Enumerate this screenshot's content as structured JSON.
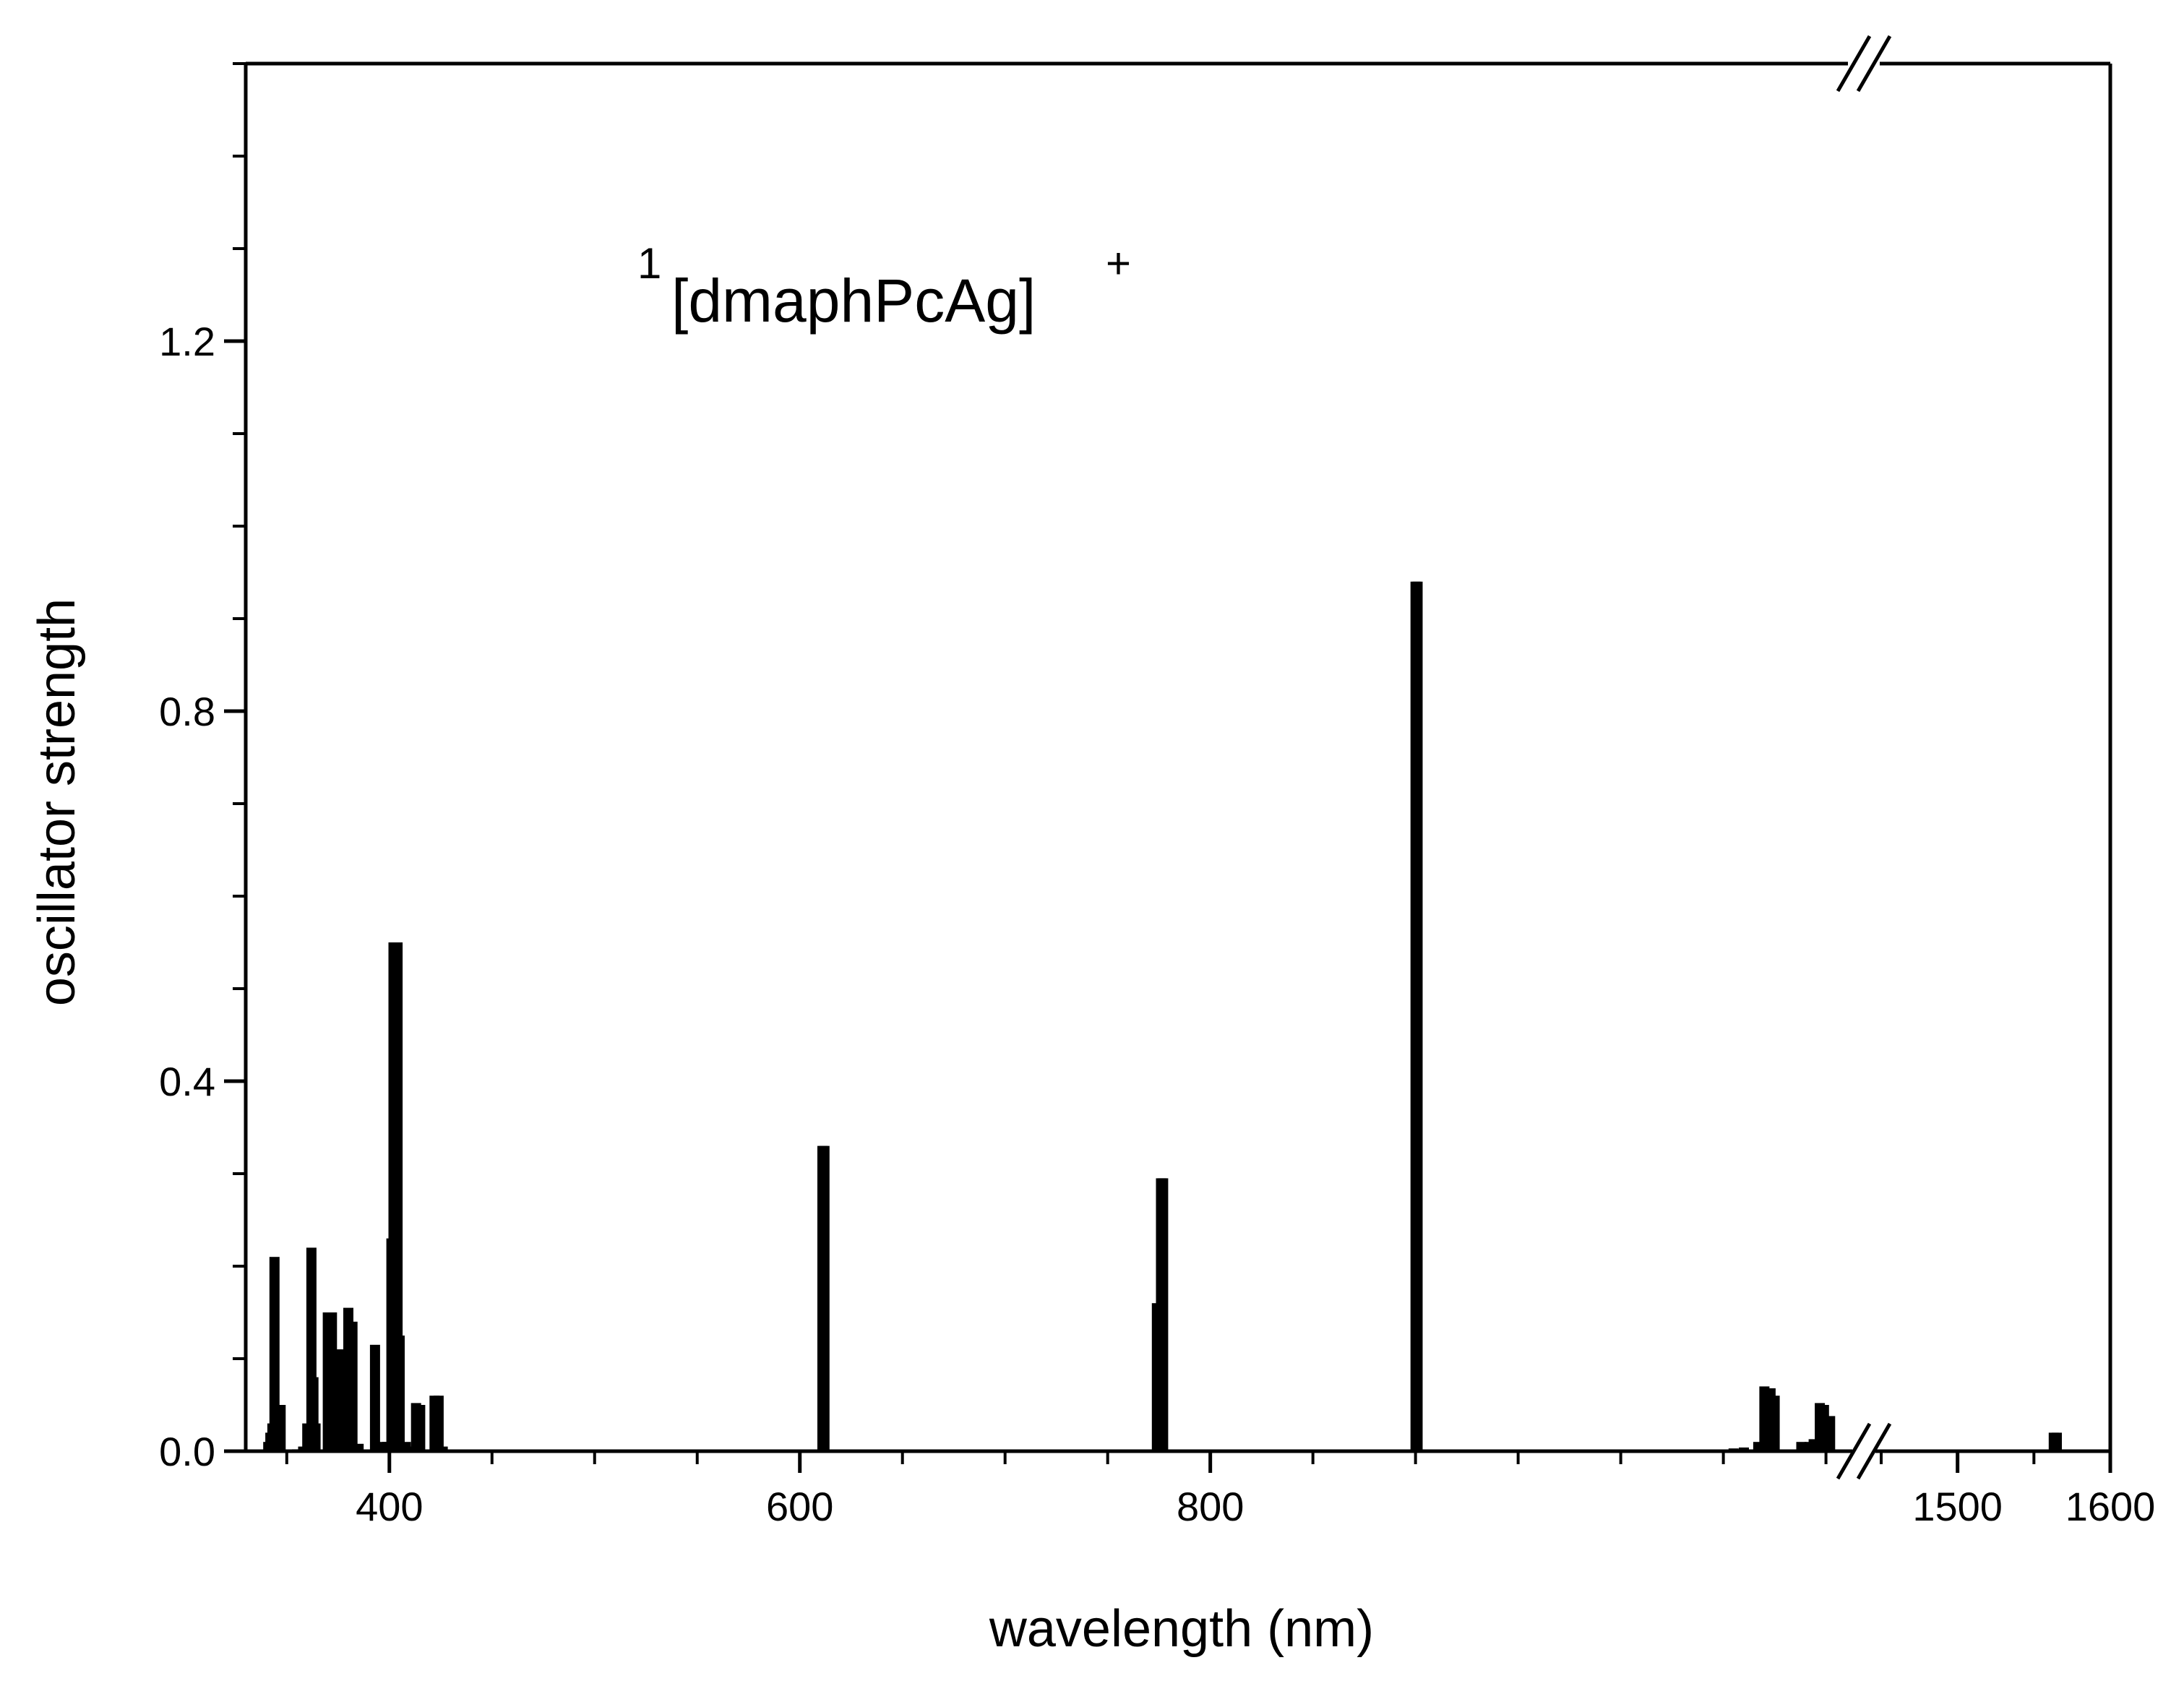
{
  "chart_data": {
    "type": "bar",
    "title": "",
    "xlabel": "wavelength (nm)",
    "ylabel": "oscillator strength",
    "annotation": {
      "superscript_left": "1",
      "text": "[dmaphPcAg]",
      "superscript_right": "+"
    },
    "x_axis": {
      "segments": [
        {
          "range": [
            330,
            1110
          ],
          "ticks": [
            400,
            600,
            800
          ],
          "tick_labels": [
            "400",
            "600",
            "800"
          ],
          "minor_step": 50
        },
        {
          "range": [
            1450,
            1600
          ],
          "ticks": [
            1500,
            1600
          ],
          "tick_labels": [
            "1500",
            "1600"
          ],
          "minor_step": 50
        }
      ],
      "break": true
    },
    "y_axis": {
      "ylim": [
        0,
        1.5
      ],
      "ticks": [
        0.0,
        0.4,
        0.8,
        1.2
      ],
      "tick_labels": [
        "0.0",
        "0.4",
        "0.8",
        "1.2"
      ],
      "minor_step": 0.1
    },
    "grid": false,
    "legend": "none",
    "bar_color": "#000000",
    "series": [
      {
        "x": [
          341,
          342,
          343,
          344,
          345,
          347,
          355,
          358,
          360,
          362,
          363,
          364,
          370,
          372,
          375,
          377,
          380,
          382,
          385,
          393,
          396,
          399,
          401,
          402,
          404,
          405,
          408,
          410,
          413,
          415,
          422,
          424,
          426,
          611,
          612,
          774,
          776,
          777,
          900,
          901,
          1055,
          1060,
          1067,
          1070,
          1073,
          1075,
          1088,
          1092,
          1094,
          1097,
          1099,
          1102,
          1563,
          1565
        ],
        "values": [
          0.01,
          0.02,
          0.03,
          0.21,
          0.04,
          0.05,
          0.002,
          0.005,
          0.03,
          0.22,
          0.08,
          0.03,
          0.15,
          0.15,
          0.11,
          0.11,
          0.155,
          0.14,
          0.008,
          0.115,
          0.01,
          0.01,
          0.23,
          0.55,
          0.55,
          0.125,
          0.01,
          0.005,
          0.052,
          0.05,
          0.06,
          0.06,
          0.005,
          0.33,
          0.33,
          0.16,
          0.295,
          0.295,
          0.94,
          0.94,
          0.003,
          0.004,
          0.01,
          0.07,
          0.068,
          0.06,
          0.01,
          0.01,
          0.013,
          0.052,
          0.05,
          0.038,
          0.02,
          0.02
        ]
      }
    ]
  }
}
